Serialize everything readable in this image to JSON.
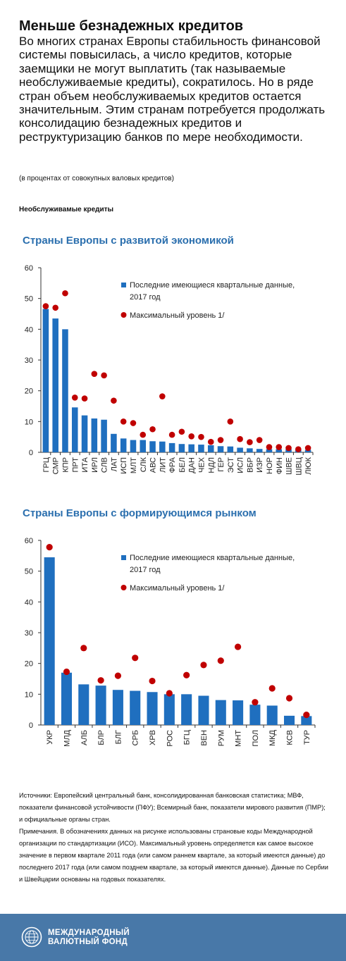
{
  "title": "Меньше безнадежных кредитов",
  "intro": "Во многих странах Европы стабильность финансовой системы повысилась, а число кредитов, которые заемщики не могут выплатить (так называемые необслуживаемые кредиты), сократилось. Но в ряде стран объем необслуживаемых кредитов остается значительным. Этим странам потребуется продолжать консолидацию безнадежных кредитов и реструктуризацию банков по мере необходимости.",
  "units_note": "(в процентах от совокупных валовых кредитов)",
  "section_label": "Необслуживамые кредиты",
  "colors": {
    "bar": "#1f6fbf",
    "dot": "#c00000",
    "chart_title": "#2b6fae",
    "footer": "#4878a8"
  },
  "chart_data": [
    {
      "type": "bar",
      "title": "Страны Европы с развитой экономикой",
      "xlabel": "",
      "ylabel": "",
      "ylim": [
        0,
        60
      ],
      "yticks": [
        0,
        10,
        20,
        30,
        40,
        50,
        60
      ],
      "legend_position": "top-right",
      "categories": [
        "ГРЦ",
        "СМР",
        "КПР",
        "ПРТ",
        "ИТА",
        "ИРЛ",
        "СЛВ",
        "ЛАТ",
        "ИСП",
        "МЛТ",
        "СЛК",
        "АВС",
        "ЛИТ",
        "ФРА",
        "БЕЛ",
        "ДАН",
        "ЧЕХ",
        "НДЛ",
        "ГЕР",
        "ЭСТ",
        "ИСЛ",
        "ВБР",
        "ИЗР",
        "НОР",
        "ФИН",
        "ШВЕ",
        "ШВЦ",
        "ЛЮК"
      ],
      "series": [
        {
          "name": "Последние имеющиеся квартальные данные, 2017 год",
          "kind": "bar",
          "values": [
            46.6,
            43.5,
            40.0,
            14.6,
            12.0,
            11.0,
            10.6,
            6.0,
            4.5,
            4.0,
            4.0,
            3.6,
            3.5,
            3.0,
            2.7,
            2.6,
            2.5,
            2.3,
            2.0,
            1.9,
            1.5,
            1.3,
            1.1,
            1.0,
            1.0,
            1.0,
            0.8,
            0.8
          ]
        },
        {
          "name": "Максимальный уровень 1/",
          "kind": "dot",
          "values": [
            47.5,
            47.0,
            51.7,
            17.8,
            17.5,
            25.5,
            25.0,
            16.8,
            10.0,
            9.5,
            5.7,
            7.5,
            18.2,
            5.7,
            6.7,
            5.2,
            5.0,
            3.4,
            4.0,
            10.0,
            4.3,
            3.3,
            4.0,
            1.7,
            1.7,
            1.4,
            1.0,
            1.4
          ]
        }
      ]
    },
    {
      "type": "bar",
      "title": "Страны Европы с формирующимся рынком",
      "xlabel": "",
      "ylabel": "",
      "ylim": [
        0,
        60
      ],
      "yticks": [
        0,
        10,
        20,
        30,
        40,
        50,
        60
      ],
      "legend_position": "top-right",
      "categories": [
        "УКР",
        "МЛД",
        "АЛБ",
        "БЛР",
        "БЛГ",
        "СРБ",
        "ХРВ",
        "РОС",
        "БГЦ",
        "ВЕН",
        "РУМ",
        "МНТ",
        "ПОЛ",
        "МКД",
        "КСВ",
        "ТУР"
      ],
      "series": [
        {
          "name": "Последние имеющиеся квартальные данные, 2017 год",
          "kind": "bar",
          "values": [
            54.5,
            17.0,
            13.2,
            12.8,
            11.4,
            11.1,
            10.7,
            10.0,
            10.0,
            9.5,
            8.1,
            8.0,
            6.6,
            6.3,
            3.0,
            2.9
          ]
        },
        {
          "name": "Максимальный уровень 1/",
          "kind": "dot",
          "values": [
            57.8,
            17.3,
            25.0,
            14.5,
            16.0,
            21.8,
            14.3,
            10.3,
            16.2,
            19.5,
            20.9,
            25.4,
            7.4,
            11.9,
            8.7,
            3.3
          ]
        }
      ]
    }
  ],
  "notes": {
    "sources": "Источники: Европейский центральный банк, консолидированная банковская статистика; МВФ, показатели финансовой устойчивости (ПФУ); Всемирный банк, показатели мирового развития (ПМР); и официальные органы стран.",
    "remarks": "Примечания. В обозначениях данных на рисунке использованы страновые коды Международной организации по стандартизации (ИСО). Максимальный уровень определяется как самое высокое значение в первом квартале  2011 года (или самом раннем квартале, за который имеются данные) до последнего 2017 года  (или самом позднем квартале, за который имеются данные). Данные по Сербии и Швейцарии основаны на годовых показателях."
  },
  "footer": {
    "logo_line1": "МЕЖДУНАРОДНЫЙ",
    "logo_line2": "ВАЛЮТНЫЙ ФОНД",
    "seal_icon": "imf-seal-icon"
  }
}
